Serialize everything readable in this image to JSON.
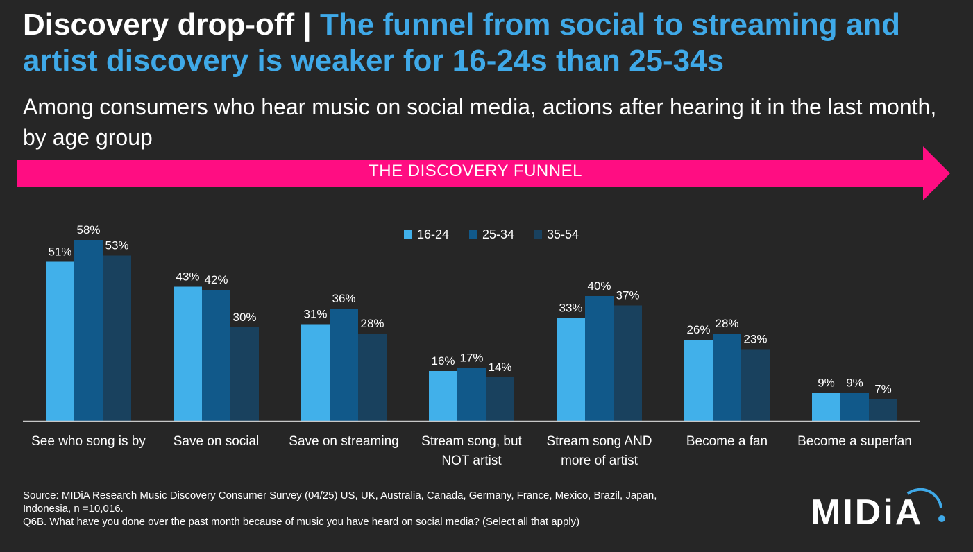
{
  "header": {
    "title_bold": "Discovery drop-off",
    "title_sep": " | ",
    "title_accent": "The funnel from social to streaming and artist discovery is weaker for 16-24s than 25-34s",
    "subtitle": "Among consumers who hear music on social media, actions after hearing it in the last month, by age group"
  },
  "funnel": {
    "label": "THE DISCOVERY FUNNEL",
    "color": "#ff0d82"
  },
  "chart_data": {
    "type": "bar",
    "categories": [
      [
        "See who song is by"
      ],
      [
        "Save on social"
      ],
      [
        "Save on streaming"
      ],
      [
        "Stream song, but",
        "NOT artist"
      ],
      [
        "Stream song AND",
        "more of artist"
      ],
      [
        "Become a fan"
      ],
      [
        "Become a superfan"
      ]
    ],
    "series": [
      {
        "name": "16-24",
        "color": "#41b0ea",
        "values": [
          51,
          43,
          31,
          16,
          33,
          26,
          9
        ]
      },
      {
        "name": "25-34",
        "color": "#11598a",
        "values": [
          58,
          42,
          36,
          17,
          40,
          28,
          9
        ]
      },
      {
        "name": "35-54",
        "color": "#19415e",
        "values": [
          53,
          30,
          28,
          14,
          37,
          23,
          7
        ]
      }
    ],
    "value_suffix": "%",
    "ylim": [
      0,
      60
    ],
    "legend": "top-center",
    "grid": false
  },
  "footer": {
    "source_lines": [
      "Source: MIDiA Research Music Discovery Consumer Survey (04/25) US, UK, Australia, Canada, Germany, France, Mexico, Brazil, Japan,",
      "Indonesia, n =10,016.",
      "Q6B. What have you done over the past month because of music you have heard on social media? (Select all that apply)"
    ],
    "logo_text": "MIDiA"
  }
}
